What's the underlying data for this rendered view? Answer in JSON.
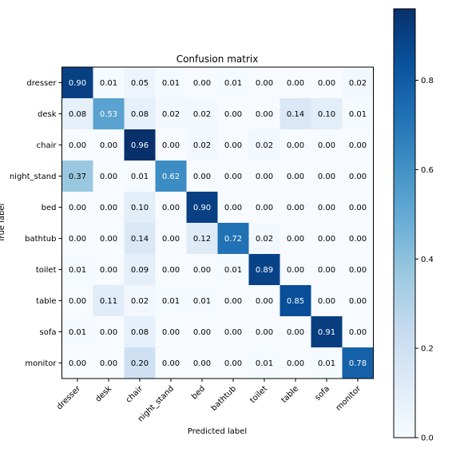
{
  "chart_data": {
    "type": "heatmap",
    "title": "Confusion matrix",
    "xlabel": "Predicted label",
    "ylabel": "True label",
    "labels": [
      "dresser",
      "desk",
      "chair",
      "night_stand",
      "bed",
      "bathtub",
      "toilet",
      "table",
      "sofa",
      "monitor"
    ],
    "matrix": [
      [
        0.9,
        0.01,
        0.05,
        0.01,
        0.0,
        0.01,
        0.0,
        0.0,
        0.0,
        0.02
      ],
      [
        0.08,
        0.53,
        0.08,
        0.02,
        0.02,
        0.0,
        0.0,
        0.14,
        0.1,
        0.01
      ],
      [
        0.0,
        0.0,
        0.96,
        0.0,
        0.02,
        0.0,
        0.02,
        0.0,
        0.0,
        0.0
      ],
      [
        0.37,
        0.0,
        0.01,
        0.62,
        0.0,
        0.0,
        0.0,
        0.0,
        0.0,
        0.0
      ],
      [
        0.0,
        0.0,
        0.1,
        0.0,
        0.9,
        0.0,
        0.0,
        0.0,
        0.0,
        0.0
      ],
      [
        0.0,
        0.0,
        0.14,
        0.0,
        0.12,
        0.72,
        0.02,
        0.0,
        0.0,
        0.0
      ],
      [
        0.01,
        0.0,
        0.09,
        0.0,
        0.0,
        0.01,
        0.89,
        0.0,
        0.0,
        0.0
      ],
      [
        0.0,
        0.11,
        0.02,
        0.01,
        0.01,
        0.0,
        0.0,
        0.85,
        0.0,
        0.0
      ],
      [
        0.01,
        0.0,
        0.08,
        0.0,
        0.0,
        0.0,
        0.0,
        0.0,
        0.91,
        0.0
      ],
      [
        0.0,
        0.0,
        0.2,
        0.0,
        0.0,
        0.0,
        0.01,
        0.0,
        0.01,
        0.78
      ]
    ],
    "colormap": "Blues",
    "value_range": [
      0,
      0.96
    ],
    "colorbar_ticks": [
      "0.0",
      "0.2",
      "0.4",
      "0.6",
      "0.8"
    ],
    "grid": false
  }
}
